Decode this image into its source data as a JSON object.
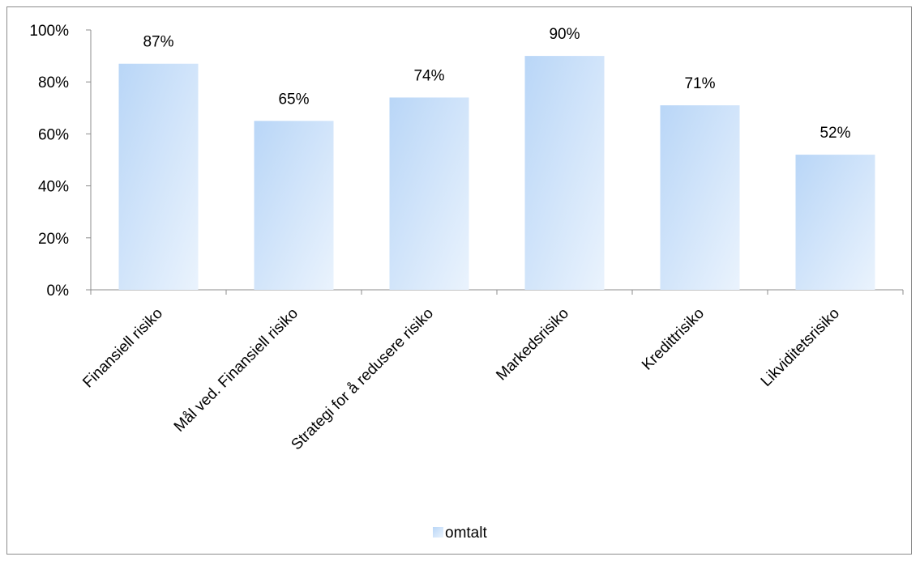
{
  "chart_data": {
    "type": "bar",
    "categories": [
      "Finansiell risiko",
      "Mål ved. Finansiell risiko",
      "Strategi for å redusere risiko",
      "Markedsrisiko",
      "Kredittrisiko",
      "Likviditetsrisiko"
    ],
    "series": [
      {
        "name": "omtalt",
        "values": [
          87,
          65,
          74,
          90,
          71,
          52
        ],
        "value_labels": [
          "87%",
          "65%",
          "74%",
          "90%",
          "71%",
          "52%"
        ]
      }
    ],
    "ylim": [
      0,
      100
    ],
    "y_ticks": [
      0,
      20,
      40,
      60,
      80,
      100
    ],
    "y_tick_labels": [
      "0%",
      "20%",
      "40%",
      "60%",
      "80%",
      "100%"
    ],
    "xlabel": "",
    "ylabel": "",
    "grid": false,
    "legend": {
      "position": "bottom",
      "entries": [
        "omtalt"
      ]
    },
    "colors": {
      "bar_fill_start": "#b9d6f7",
      "bar_fill_end": "#eaf3fd",
      "axis": "#8c8c8c",
      "frame_border": "#8c8c8c"
    }
  }
}
